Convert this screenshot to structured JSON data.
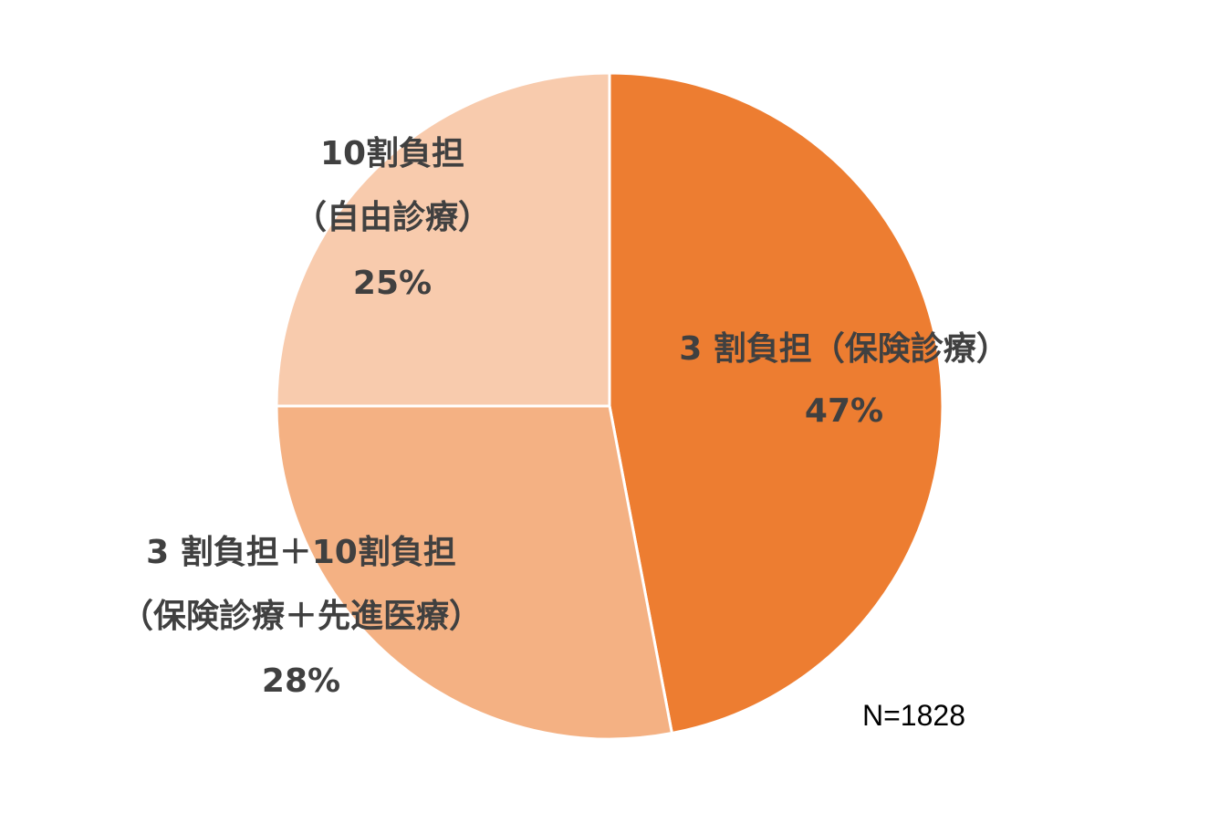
{
  "chart_data": {
    "type": "pie",
    "categories": [
      "3割負担（保険診療）",
      "3割負担＋10割負担（保険診療＋先進医療）",
      "10割負担（自由診療）"
    ],
    "values": [
      47,
      28,
      25
    ],
    "labels": [
      {
        "lines": [
          "3 割負担（保険診療）"
        ],
        "percent": "47%"
      },
      {
        "lines": [
          "3 割負担＋10割負担",
          "（保険診療＋先進医療）"
        ],
        "percent": "28%"
      },
      {
        "lines": [
          "10割負担",
          "（自由診療）"
        ],
        "percent": "25%"
      }
    ],
    "colors": [
      "#ED7D31",
      "#F4B183",
      "#F8CBAD"
    ],
    "start_angle_deg": 0,
    "direction": "clockwise",
    "legend": "none",
    "annotation": "N=1828"
  }
}
